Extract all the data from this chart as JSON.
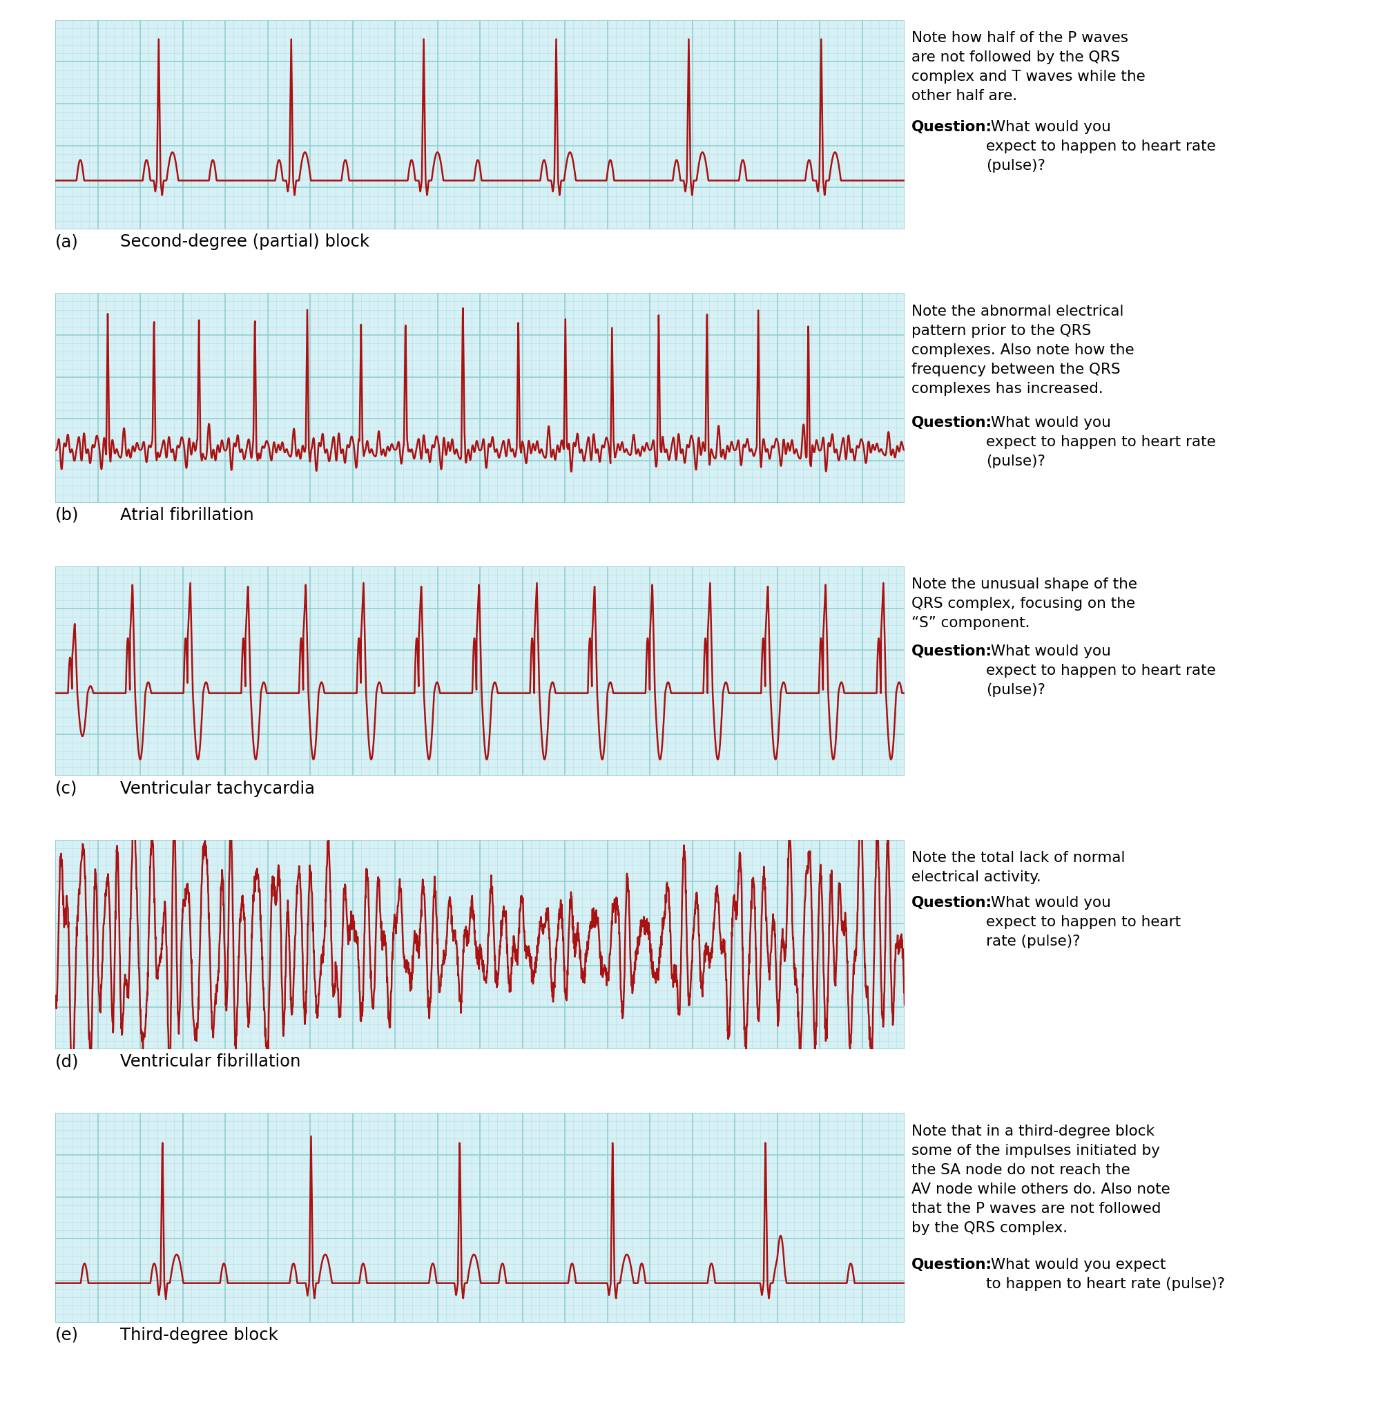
{
  "background_color": "#ffffff",
  "ecg_bg_color": "#d6f0f5",
  "ecg_line_color": "#aa1111",
  "grid_major_color": "#8ecece",
  "grid_minor_color": "#b8e4e4",
  "panels": [
    {
      "label": "(a)",
      "title": "Second-degree (partial) block",
      "note_normal": "Note how half of the P waves\nare not followed by the QRS\ncomplex and T waves while the\nother half are.",
      "note_bold": "Question:",
      "note_question": " What would you\nexpect to happen to heart rate\n(pulse)?",
      "ecg_type": "second_degree_block",
      "ylim": [
        -0.38,
        1.25
      ]
    },
    {
      "label": "(b)",
      "title": "Atrial fibrillation",
      "note_normal": "Note the abnormal electrical\npattern prior to the QRS\ncomplexes. Also note how the\nfrequency between the QRS\ncomplexes has increased.",
      "note_bold": "Question:",
      "note_question": " What would you\nexpect to happen to heart rate\n(pulse)?",
      "ecg_type": "atrial_fibrillation",
      "ylim": [
        -0.45,
        1.3
      ]
    },
    {
      "label": "(c)",
      "title": "Ventricular tachycardia",
      "note_normal": "Note the unusual shape of the\nQRS complex, focusing on the\n“S” component.",
      "note_bold": "Question:",
      "note_question": " What would you\nexpect to happen to heart rate\n(pulse)?",
      "ecg_type": "ventricular_tachycardia",
      "ylim": [
        -0.75,
        1.15
      ]
    },
    {
      "label": "(d)",
      "title": "Ventricular fibrillation",
      "note_normal": "Note the total lack of normal\nelectrical activity.",
      "note_bold": "Question:",
      "note_question": " What would you\nexpect to happen to heart\nrate (pulse)?",
      "ecg_type": "ventricular_fibrillation",
      "ylim": [
        -0.55,
        0.55
      ]
    },
    {
      "label": "(e)",
      "title": "Third-degree block",
      "note_normal": "Note that in a third-degree block\nsome of the impulses initiated by\nthe SA node do not reach the\nAV node while others do. Also note\nthat the P waves are not followed\nby the QRS complex.",
      "note_bold": "Question:",
      "note_question": " What would you expect\nto happen to heart rate (pulse)?",
      "ecg_type": "third_degree_block",
      "ylim": [
        -0.22,
        0.95
      ]
    }
  ]
}
